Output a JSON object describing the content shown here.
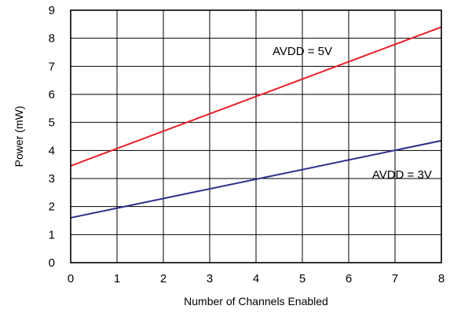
{
  "chart_data": {
    "type": "line",
    "title": "",
    "xlabel": "Number of Channels Enabled",
    "ylabel": "Power (mW)",
    "xlim": [
      0,
      8
    ],
    "ylim": [
      0,
      9
    ],
    "xticks": [
      "0",
      "1",
      "2",
      "3",
      "4",
      "5",
      "6",
      "7",
      "8"
    ],
    "yticks": [
      "0",
      "1",
      "2",
      "3",
      "4",
      "5",
      "6",
      "7",
      "8",
      "9"
    ],
    "grid": true,
    "x": [
      0,
      8
    ],
    "series": [
      {
        "name": "AVDD = 5V",
        "values": [
          3.45,
          8.4
        ],
        "color": "#e8202a"
      },
      {
        "name": "AVDD = 3V",
        "values": [
          1.6,
          4.35
        ],
        "color": "#2e2d8c"
      }
    ]
  }
}
